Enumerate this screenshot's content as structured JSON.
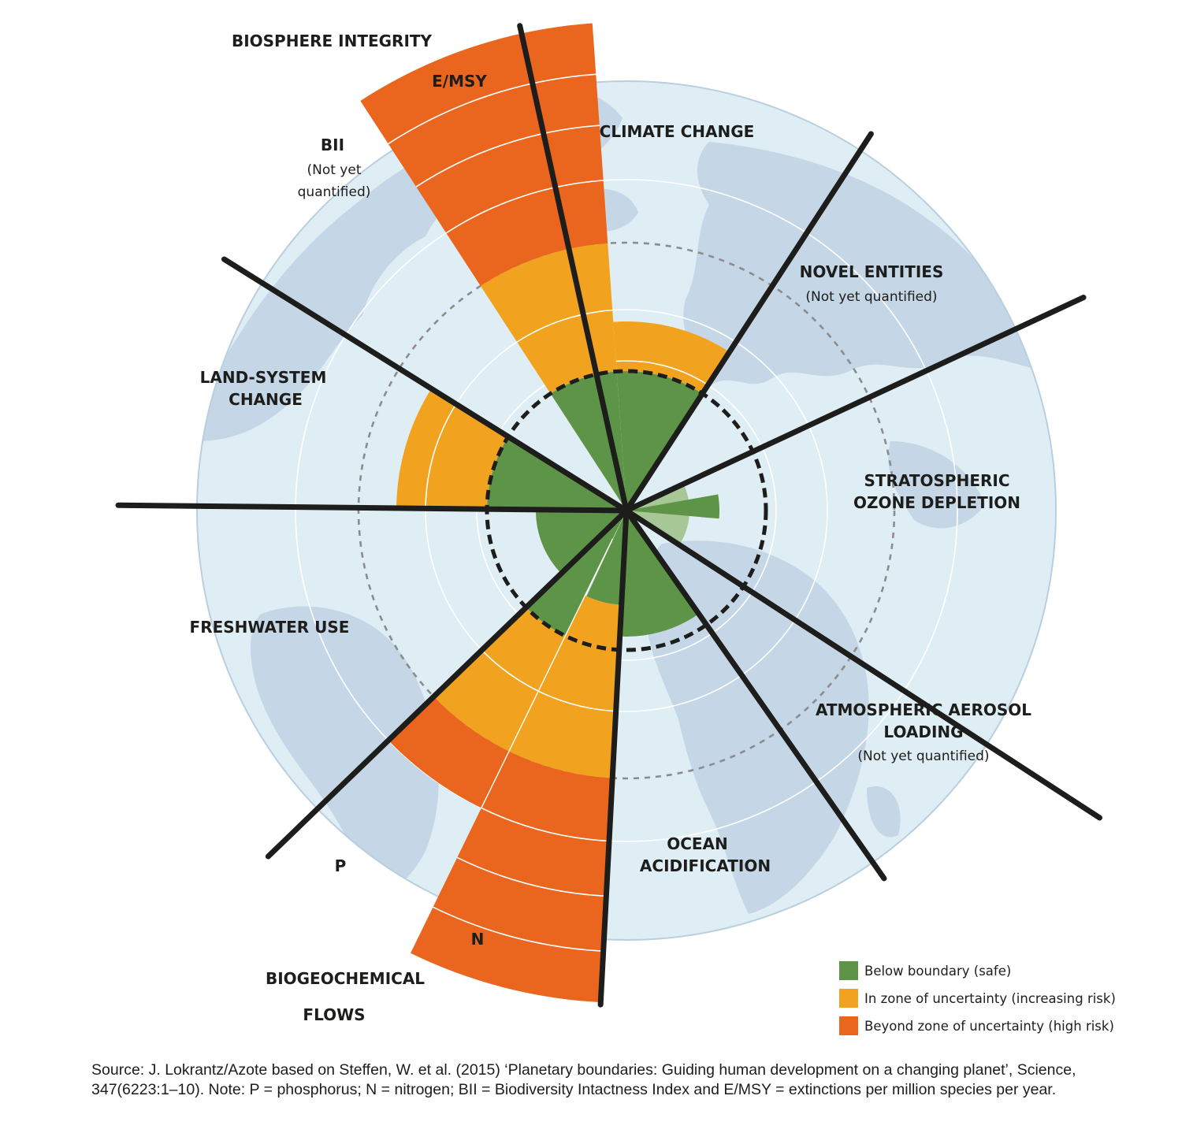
{
  "labels": {
    "biosphere_integrity": "BIOSPHERE INTEGRITY",
    "emsy": "E/MSY",
    "bii": "BII",
    "bii_note_1": "(Not yet",
    "bii_note_2": "quantified)",
    "climate_change": "CLIMATE CHANGE",
    "novel_entities": "NOVEL ENTITIES",
    "novel_entities_note": "(Not yet quantified)",
    "stratospheric_1": "STRATOSPHERIC",
    "stratospheric_2": "OZONE DEPLETION",
    "aerosol_1": "ATMOSPHERIC AEROSOL",
    "aerosol_2": "LOADING",
    "aerosol_note": "(Not yet quantified)",
    "ocean_1": "OCEAN",
    "ocean_2": "ACIDIFICATION",
    "biogeo_1": "BIOGEOCHEMICAL",
    "biogeo_2": "FLOWS",
    "p": "P",
    "n": "N",
    "freshwater": "FRESHWATER USE",
    "land_1": "LAND-SYSTEM",
    "land_2": "CHANGE"
  },
  "legend": {
    "safe": "Below boundary (safe)",
    "uncertainty": "In zone of uncertainty (increasing risk)",
    "high_risk": "Beyond zone of uncertainty (high risk)"
  },
  "colors": {
    "safe": "#5e9447",
    "safe_light": "#a8c796",
    "uncertainty": "#f1a31f",
    "high_risk": "#ea661f",
    "globe": "#dfeef4",
    "land": "#c5d6e6"
  },
  "source_text": "Source: J. Lokrantz/Azote based on Steffen, W. et al. (2015) ‘Planetary boundaries: Guiding human development on a changing planet’, Science, 347(6223:1–10). Note: P = phosphorus; N = nitrogen; BII = Biodiversity Intactness Index and E/MSY = extinctions per million species per year."
}
